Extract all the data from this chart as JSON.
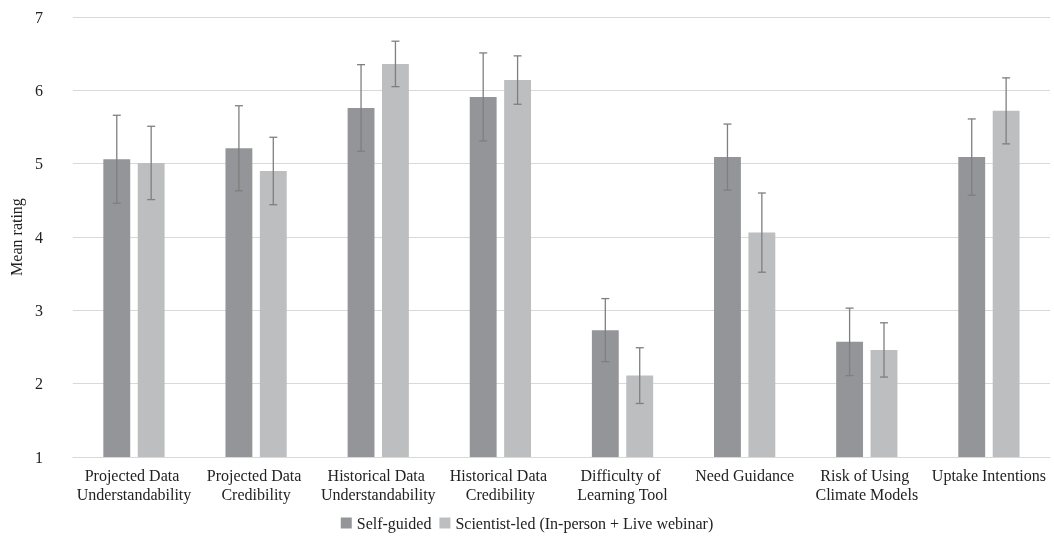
{
  "chart_data": {
    "type": "bar",
    "ylabel": "Mean rating",
    "categories": [
      "Projected Data Understandability",
      "Projected Data Credibility",
      "Historical Data Understandability",
      "Historical Data Credibility",
      "Difficulty of Learning Tool",
      "Need Guidance",
      "Risk of Using Climate Models",
      "Uptake Intentions"
    ],
    "series": [
      {
        "name": "Self-guided",
        "color": "#939598",
        "values": [
          5.06,
          5.21,
          5.76,
          5.91,
          2.73,
          5.09,
          2.57,
          5.09
        ],
        "errors": [
          0.6,
          0.58,
          0.59,
          0.6,
          0.43,
          0.45,
          0.46,
          0.52
        ]
      },
      {
        "name": "Scientist-led (In-person + Live webinar)",
        "color": "#bcbec0",
        "values": [
          5.01,
          4.9,
          6.36,
          6.14,
          2.11,
          4.06,
          2.46,
          5.72
        ],
        "errors": [
          0.5,
          0.46,
          0.31,
          0.33,
          0.38,
          0.54,
          0.37,
          0.45
        ]
      }
    ],
    "ylim": [
      1,
      7
    ],
    "yticks": [
      1,
      2,
      3,
      4,
      5,
      6,
      7
    ],
    "grid": "y",
    "legend": "bottom"
  }
}
